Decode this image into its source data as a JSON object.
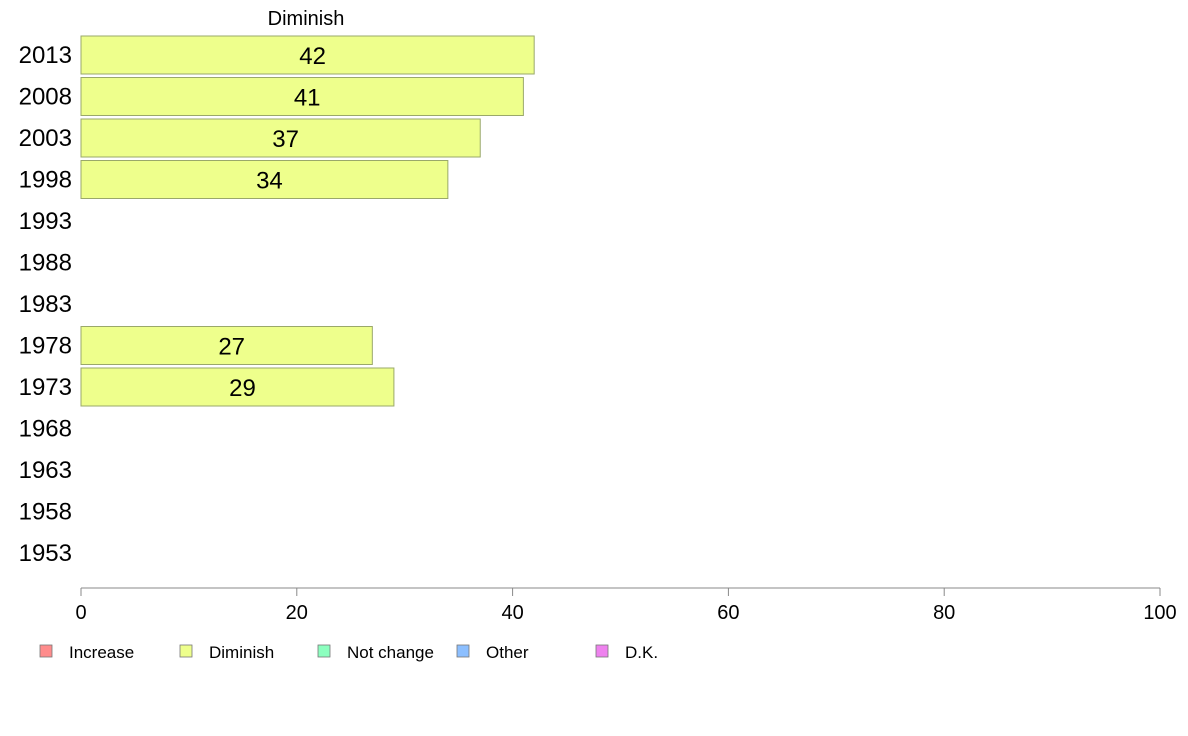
{
  "chart_data": {
    "type": "bar",
    "orientation": "horizontal",
    "title": "Diminish",
    "categories": [
      "2013",
      "2008",
      "2003",
      "1998",
      "1993",
      "1988",
      "1983",
      "1978",
      "1973",
      "1968",
      "1963",
      "1958",
      "1953"
    ],
    "series": [
      {
        "name": "Diminish",
        "values": [
          42,
          41,
          37,
          34,
          null,
          null,
          null,
          27,
          29,
          null,
          null,
          null,
          null
        ]
      }
    ],
    "data_labels": [
      "42",
      "41",
      "37",
      "34",
      "",
      "",
      "",
      "27",
      "29",
      "",
      "",
      "",
      ""
    ],
    "xlim": [
      0,
      100
    ],
    "xticks": [
      0,
      20,
      40,
      60,
      80,
      100
    ],
    "xtick_labels": [
      "0",
      "20",
      "40",
      "60",
      "80",
      "100"
    ],
    "grid": false,
    "legend_position": "bottom",
    "legend": [
      {
        "label": "Increase",
        "color": "#ff8c8c"
      },
      {
        "label": "Diminish",
        "color": "#eeff8c"
      },
      {
        "label": "Not change",
        "color": "#8cffbf"
      },
      {
        "label": "Other",
        "color": "#8cbfff"
      },
      {
        "label": "D.K.",
        "color": "#ee82ee"
      }
    ],
    "bar_color": "#eeff8c",
    "bar_stroke": "#9aa86a"
  }
}
